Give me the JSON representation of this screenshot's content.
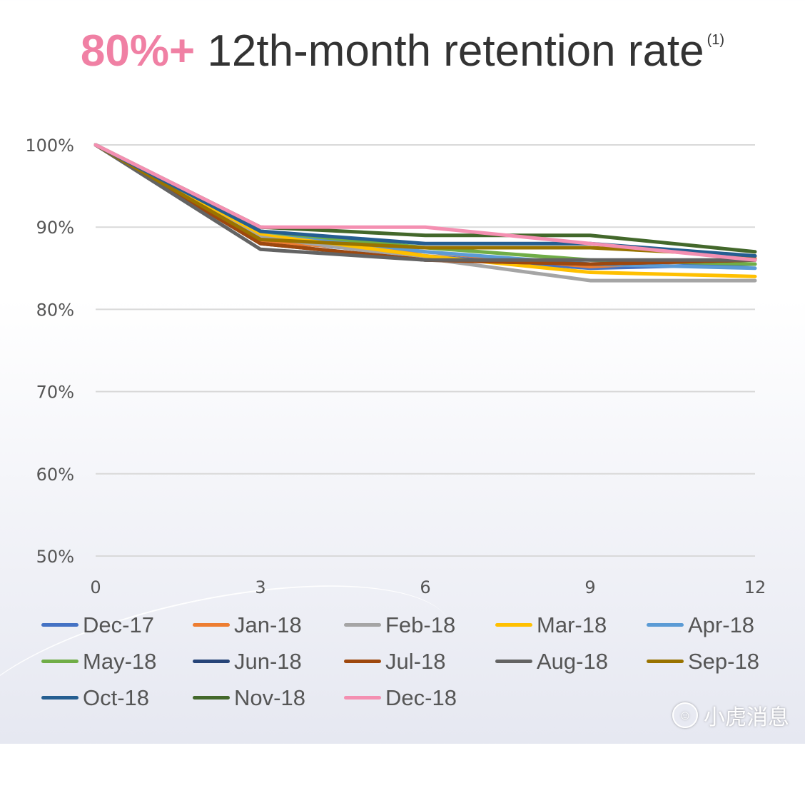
{
  "title": {
    "accent": "80%+",
    "main": " 12th-month retention rate",
    "footnote": "(1)"
  },
  "chart_data": {
    "type": "line",
    "title": "80%+ 12th-month retention rate",
    "x": [
      0,
      3,
      6,
      9,
      12
    ],
    "ylim": [
      50,
      100
    ],
    "yticks": [
      50,
      60,
      70,
      80,
      90,
      100
    ],
    "ytick_labels": [
      "50%",
      "60%",
      "70%",
      "80%",
      "90%",
      "100%"
    ],
    "xtick_labels": [
      "0",
      "3",
      "6",
      "9",
      "12"
    ],
    "grid": true,
    "legend_position": "bottom",
    "series": [
      {
        "name": "Dec-17",
        "color": "#4472c4",
        "values": [
          100,
          88.5,
          86.5,
          85.0,
          85.5
        ]
      },
      {
        "name": "Jan-18",
        "color": "#ed7d31",
        "values": [
          100,
          88.2,
          87.0,
          85.2,
          86.2
        ]
      },
      {
        "name": "Feb-18",
        "color": "#a5a5a5",
        "values": [
          100,
          88.8,
          86.2,
          83.5,
          83.5
        ]
      },
      {
        "name": "Mar-18",
        "color": "#ffc000",
        "values": [
          100,
          89.2,
          86.5,
          84.5,
          84.0
        ]
      },
      {
        "name": "Apr-18",
        "color": "#5b9bd5",
        "values": [
          100,
          89.5,
          87.0,
          85.5,
          85.0
        ]
      },
      {
        "name": "May-18",
        "color": "#70ad47",
        "values": [
          100,
          89.5,
          87.5,
          86.0,
          85.5
        ]
      },
      {
        "name": "Jun-18",
        "color": "#264478",
        "values": [
          100,
          88.0,
          86.0,
          85.5,
          86.0
        ]
      },
      {
        "name": "Jul-18",
        "color": "#9e480e",
        "values": [
          100,
          88.0,
          86.0,
          85.5,
          86.0
        ]
      },
      {
        "name": "Aug-18",
        "color": "#636363",
        "values": [
          100,
          87.3,
          86.0,
          86.0,
          86.0
        ]
      },
      {
        "name": "Sep-18",
        "color": "#997300",
        "values": [
          100,
          88.5,
          87.5,
          87.5,
          86.5
        ]
      },
      {
        "name": "Oct-18",
        "color": "#255e91",
        "values": [
          100,
          89.5,
          88.0,
          88.0,
          86.5
        ]
      },
      {
        "name": "Nov-18",
        "color": "#43682b",
        "values": [
          100,
          90.0,
          89.0,
          89.0,
          87.0
        ]
      },
      {
        "name": "Dec-18",
        "color": "#f48fb1",
        "values": [
          100,
          90.0,
          90.0,
          88.0,
          86.0
        ]
      }
    ]
  },
  "watermark": {
    "icon": "tiger-head-icon",
    "text": "小虎消息"
  }
}
